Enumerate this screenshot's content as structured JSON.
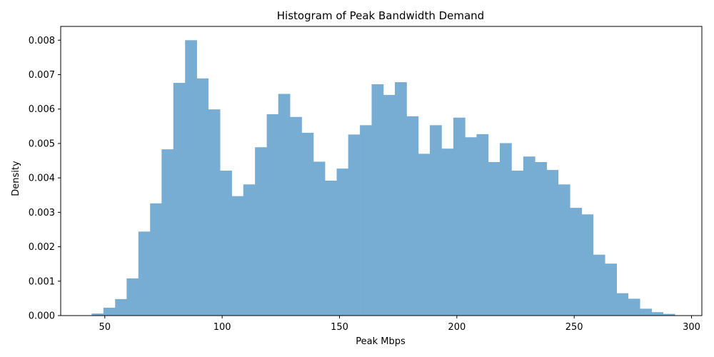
{
  "chart_data": {
    "type": "bar",
    "subtype": "histogram",
    "title": "Histogram of Peak Bandwidth Demand",
    "xlabel": "Peak Mbps",
    "ylabel": "Density",
    "bar_color": "#77acd3",
    "bin_width": 4.97,
    "xlim": [
      31.2,
      304.4
    ],
    "ylim": [
      0,
      0.0084
    ],
    "grid": false,
    "xticks": [
      50,
      100,
      150,
      200,
      250,
      300
    ],
    "xtick_labels": [
      "50",
      "100",
      "150",
      "200",
      "250",
      "300"
    ],
    "yticks": [
      0,
      0.001,
      0.002,
      0.003,
      0.004,
      0.005,
      0.006,
      0.007,
      0.008
    ],
    "ytick_labels": [
      "0.000",
      "0.001",
      "0.002",
      "0.003",
      "0.004",
      "0.005",
      "0.006",
      "0.007",
      "0.008"
    ],
    "bin_starts": [
      44.4,
      49.4,
      54.4,
      59.3,
      64.3,
      69.3,
      74.2,
      79.2,
      84.2,
      89.1,
      94.1,
      99.1,
      104.1,
      109.0,
      114.0,
      119.0,
      123.9,
      128.9,
      133.9,
      138.8,
      143.8,
      148.8,
      153.7,
      158.7,
      163.7,
      168.7,
      173.6,
      178.6,
      183.6,
      188.5,
      193.5,
      198.5,
      203.4,
      208.4,
      213.4,
      218.3,
      223.3,
      228.3,
      233.3,
      238.2,
      243.2,
      248.2,
      253.1,
      258.1,
      263.1,
      268.0,
      273.0,
      278.0,
      282.9,
      287.9
    ],
    "values": [
      6e-05,
      0.00023,
      0.00048,
      0.00108,
      0.00244,
      0.00326,
      0.00483,
      0.00676,
      0.008,
      0.00689,
      0.00599,
      0.00421,
      0.00347,
      0.00381,
      0.00489,
      0.00585,
      0.00644,
      0.00577,
      0.00531,
      0.00447,
      0.00392,
      0.00427,
      0.00526,
      0.00553,
      0.00672,
      0.00641,
      0.00678,
      0.00579,
      0.0047,
      0.00553,
      0.00485,
      0.00575,
      0.00518,
      0.00527,
      0.00446,
      0.00501,
      0.00421,
      0.00462,
      0.00446,
      0.00423,
      0.00381,
      0.00313,
      0.00294,
      0.00177,
      0.00151,
      0.00065,
      0.00049,
      0.0002,
      0.0001,
      5e-05
    ]
  }
}
